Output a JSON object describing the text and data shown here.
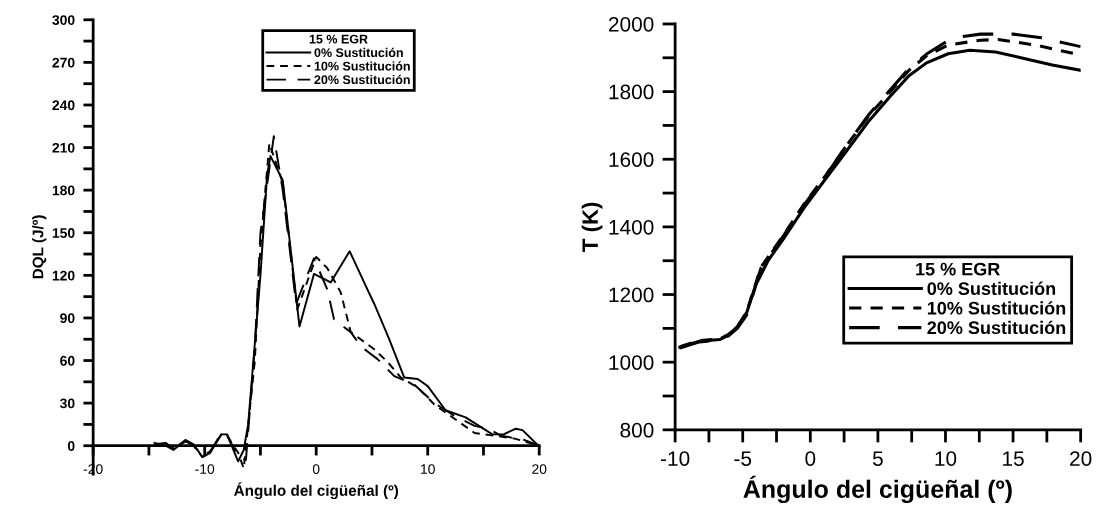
{
  "chart_data": [
    {
      "type": "line",
      "xlabel": "Ángulo del cigüeñal (º)",
      "ylabel": "DQL (J/º)",
      "legend_title": "15 % EGR",
      "legend": "top",
      "grid": false,
      "xlim": [
        -20,
        20
      ],
      "ylim": [
        -20,
        300
      ],
      "xticks": [
        -20,
        {
          "value": -15,
          "label": null
        },
        -10,
        {
          "value": -5,
          "label": null
        },
        0,
        {
          "value": 5,
          "label": null
        },
        10,
        {
          "value": 15,
          "label": null
        },
        20
      ],
      "yticks": [
        0,
        {
          "value": 15,
          "label": null
        },
        30,
        {
          "value": 45,
          "label": null
        },
        60,
        {
          "value": 75,
          "label": null
        },
        90,
        {
          "value": 105,
          "label": null
        },
        120,
        {
          "value": 135,
          "label": null
        },
        150,
        {
          "value": 165,
          "label": null
        },
        180,
        {
          "value": 195,
          "label": null
        },
        210,
        {
          "value": 225,
          "label": null
        },
        240,
        {
          "value": 255,
          "label": null
        },
        270,
        {
          "value": 285,
          "label": null
        },
        300
      ],
      "series": [
        {
          "name": "0% Sustitución",
          "color": "#000000",
          "line_style": "solid",
          "x": [
            -14.5,
            -13.5,
            -12.8,
            -11.7,
            -11,
            -10.2,
            -9.5,
            -8.5,
            -8,
            -7,
            -6.5,
            -6.1,
            -5,
            -4.4,
            -4.1,
            -3,
            -1.5,
            -0.2,
            1.3,
            3.0,
            4.6,
            5.2,
            6.5,
            7.9,
            9.1,
            10,
            11.6,
            13.4,
            15.8,
            16.8,
            17.9,
            18.5,
            19.8
          ],
          "values": [
            2,
            0,
            -3,
            4,
            1,
            -8,
            -5,
            8,
            8,
            -11,
            -3,
            15,
            120,
            191,
            204,
            187,
            84,
            121,
            115,
            137,
            110,
            100,
            76,
            48,
            47,
            42,
            25,
            20,
            8,
            8,
            12,
            11,
            1
          ]
        },
        {
          "name": "10% Sustitución",
          "color": "#000000",
          "line_style": "dashed",
          "x": [
            -14.5,
            -13.5,
            -12.8,
            -11.7,
            -11,
            -10.2,
            -9.5,
            -8.5,
            -8,
            -7,
            -6.5,
            -5.5,
            -5,
            -4.2,
            -3,
            -1.7,
            0,
            1,
            2.2,
            3.1,
            5.2,
            6.4,
            7.6,
            9.1,
            10.6,
            12.4,
            14.2,
            16,
            17.8,
            20
          ],
          "values": [
            1,
            1,
            -2,
            4,
            0,
            -8,
            -4,
            8,
            7,
            -5,
            -16,
            60,
            140,
            213,
            185,
            96,
            133,
            125,
            108,
            80,
            68,
            59,
            48,
            41,
            29,
            19,
            9,
            7,
            5,
            0
          ]
        },
        {
          "name": "20% Sustitución",
          "color": "#000000",
          "line_style": "long dashed",
          "x": [
            -14.5,
            -13.5,
            -12.8,
            -11.7,
            -11,
            -10.2,
            -9.5,
            -8.5,
            -8,
            -7,
            -6.3,
            -5.5,
            -5,
            -3.8,
            -3,
            -1.8,
            -0.2,
            1.0,
            1.6,
            3.1,
            4.0,
            5.5,
            7,
            8.8,
            10.6,
            12.4,
            14.2,
            15.4,
            16.6,
            18.7,
            20
          ],
          "values": [
            1,
            2,
            -2,
            3,
            0,
            -7,
            -4,
            9,
            8,
            -8,
            -10,
            70,
            150,
            218,
            180,
            100,
            132,
            110,
            89,
            80,
            70,
            61,
            49,
            43,
            30,
            21,
            14,
            12,
            7,
            4,
            0
          ]
        }
      ]
    },
    {
      "type": "line",
      "xlabel": "Ángulo del cigüeñal (º)",
      "ylabel": "T (K)",
      "legend_title": "15 % EGR",
      "legend": "center right",
      "grid": false,
      "xlim": [
        -10,
        20
      ],
      "ylim": [
        800,
        2000
      ],
      "xticks": [
        -10,
        {
          "value": -7.5,
          "label": null
        },
        -5,
        {
          "value": -2.5,
          "label": null
        },
        0,
        {
          "value": 2.5,
          "label": null
        },
        5,
        {
          "value": 7.5,
          "label": null
        },
        10,
        {
          "value": 12.5,
          "label": null
        },
        15,
        {
          "value": 17.5,
          "label": null
        },
        20
      ],
      "yticks": [
        800,
        {
          "value": 900,
          "label": null
        },
        1000,
        {
          "value": 1100,
          "label": null
        },
        1200,
        {
          "value": 1300,
          "label": null
        },
        1400,
        {
          "value": 1500,
          "label": null
        },
        1600,
        {
          "value": 1700,
          "label": null
        },
        1800,
        {
          "value": 1900,
          "label": null
        },
        2000
      ],
      "series": [
        {
          "name": "0% Sustitución",
          "color": "#000000",
          "line_style": "solid",
          "x": [
            -9.65,
            -8.2,
            -6.7,
            -6.05,
            -5.4,
            -4.7,
            -4.05,
            -3.1,
            -2.05,
            -0.45,
            1.15,
            2.75,
            4.35,
            5.95,
            7.3,
            8.6,
            10.2,
            11.8,
            13.7,
            15.5,
            17.9,
            20
          ],
          "values": [
            1044,
            1062,
            1067,
            1080,
            1105,
            1147,
            1227,
            1302,
            1361,
            1457,
            1543,
            1628,
            1714,
            1788,
            1847,
            1885,
            1912,
            1922,
            1917,
            1901,
            1879,
            1863
          ]
        },
        {
          "name": "10% Sustitución",
          "color": "#000000",
          "line_style": "dashed",
          "x": [
            -9.65,
            -8.2,
            -6.7,
            -6.05,
            -5.4,
            -4.7,
            -3.65,
            -2.05,
            -0.45,
            1.15,
            2.75,
            4.35,
            6,
            7.3,
            8.6,
            10.2,
            12.6,
            13.9,
            16.6,
            20
          ],
          "values": [
            1046,
            1064,
            1069,
            1082,
            1103,
            1150,
            1281,
            1372,
            1468,
            1553,
            1644,
            1730,
            1804,
            1863,
            1906,
            1938,
            1952,
            1954,
            1938,
            1908
          ]
        },
        {
          "name": "20% Sustitución",
          "color": "#000000",
          "line_style": "long dashed",
          "x": [
            -9.65,
            -8.2,
            -6.7,
            -6.05,
            -5.4,
            -4.7,
            -3.65,
            -2.05,
            -0.45,
            1.15,
            2.75,
            4.35,
            6,
            7.3,
            8.6,
            10.5,
            12.6,
            15,
            17.1,
            20
          ],
          "values": [
            1042,
            1060,
            1066,
            1078,
            1100,
            1140,
            1278,
            1370,
            1466,
            1552,
            1645,
            1733,
            1809,
            1868,
            1911,
            1959,
            1970,
            1970,
            1959,
            1933
          ]
        }
      ]
    }
  ]
}
